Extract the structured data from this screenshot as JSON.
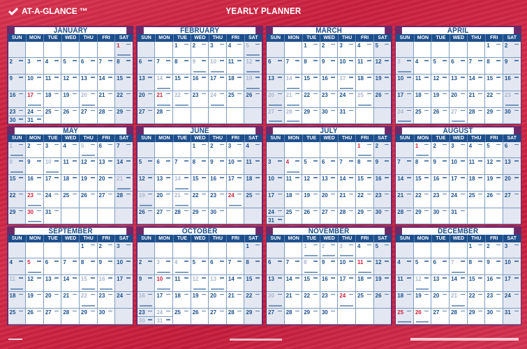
{
  "header": {
    "brand": "AT-A-GLANCE ™",
    "title": "YEARLY PLANNER"
  },
  "weekdays": [
    "SUN",
    "MON",
    "TUE",
    "WED",
    "THU",
    "FRI",
    "SAT"
  ],
  "colors": {
    "background_red": "#cf2a48",
    "month_blue": "#1a4f8b",
    "holiday_red": "#d0203f",
    "faint_date": "#a9b6cf",
    "weekend_fill": "#e3e7f2"
  },
  "months": [
    {
      "name": "JANUARY",
      "start": 6,
      "days": 31,
      "red": [
        1,
        17
      ],
      "faint": [
        20
      ],
      "notes": [
        1,
        17,
        20
      ]
    },
    {
      "name": "FEBRUARY",
      "start": 2,
      "days": 28,
      "red": [
        21
      ],
      "faint": [
        5,
        9,
        10,
        12,
        14,
        19,
        22,
        24
      ],
      "notes": [
        5,
        9,
        10,
        12,
        14,
        19,
        21,
        22,
        24
      ]
    },
    {
      "name": "MARCH",
      "start": 2,
      "days": 31,
      "red": [],
      "faint": [
        14,
        17,
        20,
        21,
        25,
        27,
        28
      ],
      "notes": [
        14,
        17,
        20,
        21,
        25,
        27,
        28
      ]
    },
    {
      "name": "APRIL",
      "start": 5,
      "days": 30,
      "red": [],
      "faint": [
        3,
        23,
        24,
        27
      ],
      "notes": [
        3,
        23,
        24,
        27
      ]
    },
    {
      "name": "MAY",
      "start": 0,
      "days": 31,
      "red": [
        23,
        30
      ],
      "faint": [
        1,
        5,
        8,
        10,
        21
      ],
      "notes": [
        1,
        5,
        8,
        10,
        21,
        23,
        30
      ]
    },
    {
      "name": "JUNE",
      "start": 3,
      "days": 30,
      "red": [
        24
      ],
      "faint": [
        14,
        19,
        21
      ],
      "notes": [
        14,
        19,
        21,
        24
      ]
    },
    {
      "name": "JULY",
      "start": 5,
      "days": 31,
      "red": [
        1,
        4
      ],
      "faint": [],
      "notes": [
        1,
        4
      ]
    },
    {
      "name": "AUGUST",
      "start": 1,
      "days": 31,
      "red": [
        1
      ],
      "faint": [],
      "notes": [
        1
      ]
    },
    {
      "name": "SEPTEMBER",
      "start": 4,
      "days": 30,
      "red": [
        5
      ],
      "faint": [
        11,
        15,
        16,
        22
      ],
      "notes": [
        5,
        11,
        15,
        16,
        22
      ]
    },
    {
      "name": "OCTOBER",
      "start": 6,
      "days": 31,
      "red": [
        10
      ],
      "faint": [
        3,
        4,
        12,
        13,
        16,
        24,
        30,
        31
      ],
      "notes": [
        3,
        4,
        10,
        12,
        13,
        16,
        24,
        30,
        31
      ]
    },
    {
      "name": "NOVEMBER",
      "start": 2,
      "days": 30,
      "red": [
        11,
        24
      ],
      "faint": [
        1,
        2,
        3,
        8,
        20
      ],
      "notes": [
        1,
        2,
        3,
        8,
        11,
        20,
        24
      ]
    },
    {
      "name": "DECEMBER",
      "start": 4,
      "days": 31,
      "red": [
        25,
        26
      ],
      "faint": [
        7,
        12,
        21
      ],
      "notes": [
        7,
        12,
        21,
        25,
        26
      ]
    }
  ]
}
